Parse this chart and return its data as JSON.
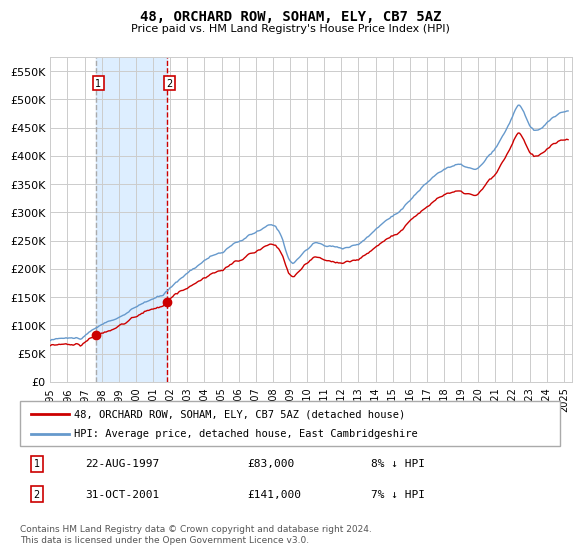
{
  "title": "48, ORCHARD ROW, SOHAM, ELY, CB7 5AZ",
  "subtitle": "Price paid vs. HM Land Registry's House Price Index (HPI)",
  "legend_line1": "48, ORCHARD ROW, SOHAM, ELY, CB7 5AZ (detached house)",
  "legend_line2": "HPI: Average price, detached house, East Cambridgeshire",
  "sale1_date": "22-AUG-1997",
  "sale1_price": 83000,
  "sale1_label": "8% ↓ HPI",
  "sale2_date": "31-OCT-2001",
  "sale2_price": 141000,
  "sale2_label": "7% ↓ HPI",
  "sale1_year": 1997.64,
  "sale2_year": 2001.83,
  "y_ticks": [
    0,
    50000,
    100000,
    150000,
    200000,
    250000,
    300000,
    350000,
    400000,
    450000,
    500000,
    550000
  ],
  "y_tick_labels": [
    "£0",
    "£50K",
    "£100K",
    "£150K",
    "£200K",
    "£250K",
    "£300K",
    "£350K",
    "£400K",
    "£450K",
    "£500K",
    "£550K"
  ],
  "ylim": [
    0,
    575000
  ],
  "xlim_start": 1995.0,
  "xlim_end": 2025.5,
  "hpi_color": "#6699cc",
  "price_color": "#cc0000",
  "grid_color": "#cccccc",
  "bg_color": "#ffffff",
  "plot_bg_color": "#ffffff",
  "shade_color": "#ddeeff",
  "vline1_color": "#aaaaaa",
  "vline2_color": "#cc0000",
  "footer": "Contains HM Land Registry data © Crown copyright and database right 2024.\nThis data is licensed under the Open Government Licence v3.0.",
  "x_tick_years": [
    1995,
    1996,
    1997,
    1998,
    1999,
    2000,
    2001,
    2002,
    2003,
    2004,
    2005,
    2006,
    2007,
    2008,
    2009,
    2010,
    2011,
    2012,
    2013,
    2014,
    2015,
    2016,
    2017,
    2018,
    2019,
    2020,
    2021,
    2022,
    2023,
    2024,
    2025
  ]
}
